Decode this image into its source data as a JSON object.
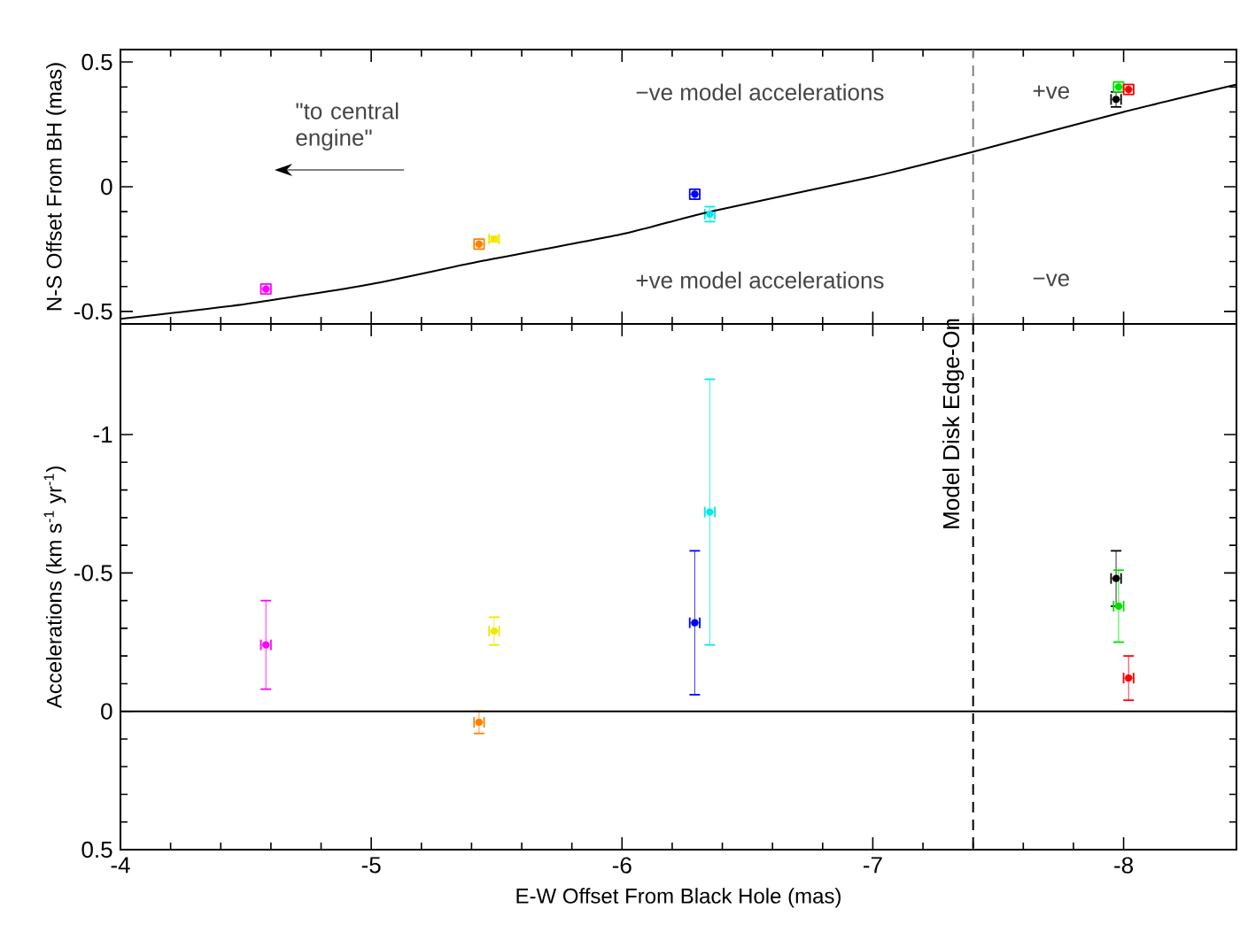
{
  "chart_data": [
    {
      "type": "scatter",
      "ylabel": "N-S Offset From BH (mas)",
      "xlim": [
        -4,
        -8.45
      ],
      "ylim": [
        -0.55,
        0.55
      ],
      "xticks": [
        -4,
        -5,
        -6,
        -7,
        -8
      ],
      "yticks": [
        -0.5,
        0,
        0.5
      ],
      "tick_labels": "y",
      "series": [
        {
          "marker": "circle",
          "x": [
            -4.58,
            -5.43,
            -5.49,
            -6.29,
            -6.35,
            -7.97,
            -7.98,
            -8.02
          ],
          "values": [
            -0.41,
            -0.23,
            -0.21,
            -0.03,
            -0.11,
            0.35,
            0.4,
            0.39
          ],
          "errors": [
            0.02,
            0.02,
            0.01,
            0.02,
            0.03,
            0.03,
            0.02,
            0.02
          ],
          "xerrors": [
            0.02,
            0.02,
            0.02,
            0.02,
            0.02,
            0.02,
            0.02,
            0.02
          ],
          "colors": [
            "#ff00ff",
            "#ff8000",
            "#f0e800",
            "#0000ff",
            "#00e8f0",
            "#000000",
            "#00e000",
            "#ff0000"
          ]
        },
        {
          "type": "line",
          "marker": "none",
          "x": [
            -4,
            -4.5,
            -5,
            -5.43,
            -6,
            -6.35,
            -7,
            -7.4,
            -8,
            -8.45
          ],
          "values": [
            -0.53,
            -0.47,
            -0.39,
            -0.3,
            -0.19,
            -0.1,
            0.04,
            0.14,
            0.3,
            0.41
          ],
          "color": "#000000"
        }
      ],
      "ref_lines": [
        {
          "axis": "x",
          "value": -7.4,
          "color": "#808080",
          "line_style": "dashed"
        }
      ],
      "annotations": [
        "−ve model accelerations",
        "+ve",
        "+ve model accelerations",
        "−ve",
        "\"to central engine\""
      ]
    },
    {
      "type": "scatter",
      "xlabel": "E-W Offset From Black Hole (mas)",
      "ylabel": "Accelerations (km s$^{-1}$ yr$^{-1}$)",
      "xlim": [
        -4,
        -8.45
      ],
      "ylim": [
        0.5,
        -1.4
      ],
      "xticks": [
        -4,
        -5,
        -6,
        -7,
        -8
      ],
      "yticks": [
        -1,
        -0.5,
        0,
        0.5
      ],
      "series": [
        {
          "marker": "circle",
          "x": [
            -4.58,
            -5.43,
            -5.49,
            -6.29,
            -6.35,
            -7.97,
            -7.98,
            -8.02
          ],
          "values": [
            -0.24,
            0.04,
            -0.29,
            -0.32,
            -0.72,
            -0.48,
            -0.38,
            -0.12
          ],
          "errors": [
            0.16,
            0.04,
            0.05,
            0.26,
            0.48,
            0.1,
            0.13,
            0.08
          ],
          "xerrors": [
            0.02,
            0.02,
            0.02,
            0.02,
            0.02,
            0.02,
            0.02,
            0.02
          ],
          "colors": [
            "#ff00ff",
            "#ff8000",
            "#f0e800",
            "#0000ff",
            "#00e8f0",
            "#000000",
            "#00e000",
            "#ff0000"
          ]
        }
      ],
      "ref_lines": [
        {
          "axis": "x",
          "value": -7.4,
          "label": "Model Disk Edge-On",
          "color": "#000000",
          "line_style": "dashed"
        },
        {
          "axis": "y",
          "value": 0,
          "color": "#000000",
          "line_style": "solid"
        }
      ]
    }
  ]
}
